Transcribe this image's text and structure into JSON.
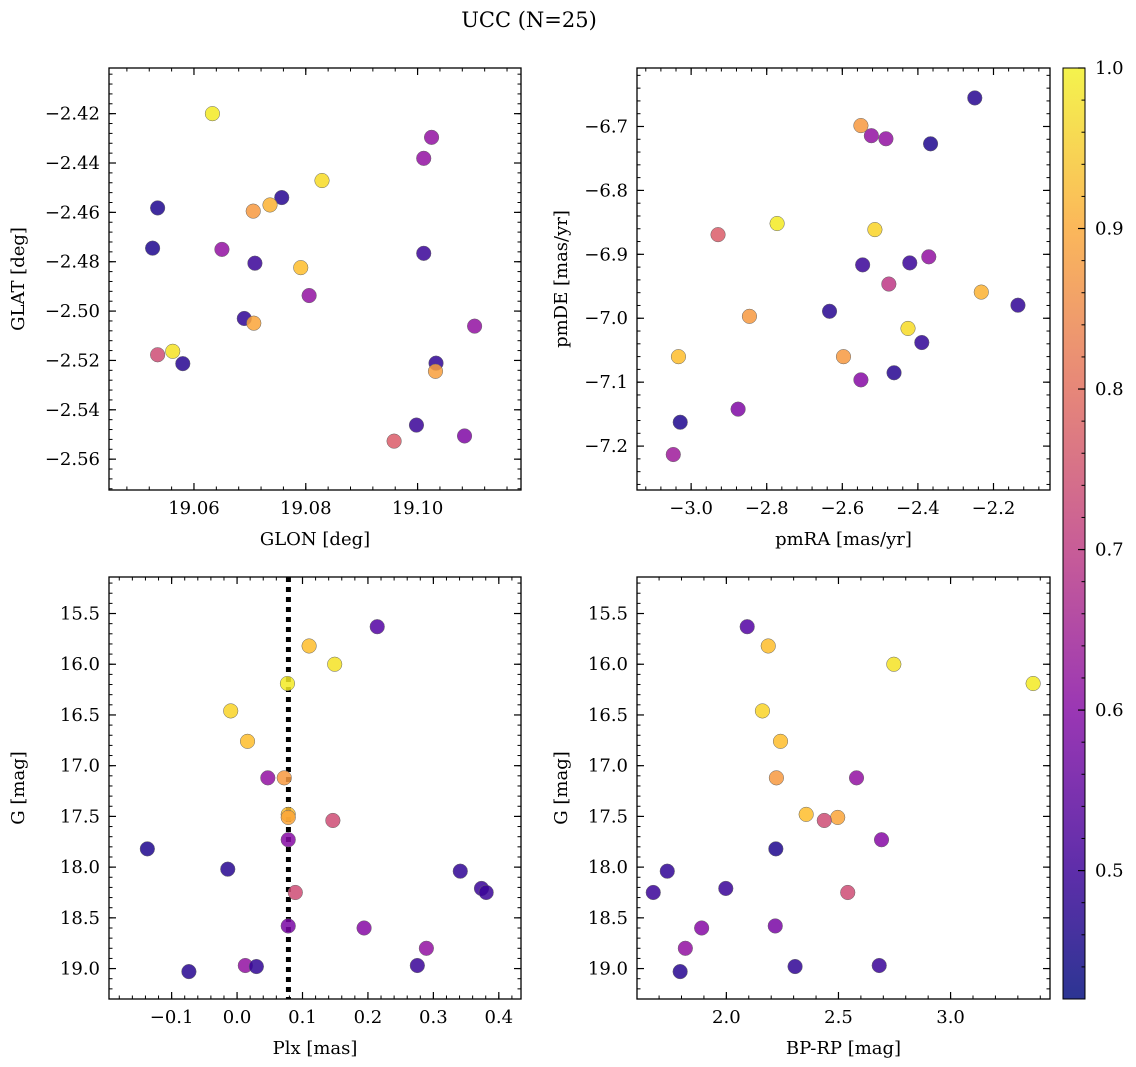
{
  "title": "UCC (N=25)",
  "colorbar": {
    "range": [
      0.42,
      1.0
    ],
    "ticks": [
      0.5,
      0.6,
      0.7,
      0.8,
      0.9,
      1.0
    ],
    "tick_labels": [
      "0.5",
      "0.6",
      "0.7",
      "0.8",
      "0.9",
      "1.0"
    ],
    "colormap": "plasma"
  },
  "chart_data": [
    {
      "type": "scatter",
      "name": "galactic-coordinates",
      "xlabel": "GLON [deg]",
      "ylabel": "GLAT [deg]",
      "xlim": [
        19.0448,
        19.1185
      ],
      "ylim": [
        -2.5725,
        -2.4015
      ],
      "y_inverted": false,
      "xticks": [
        19.06,
        19.08,
        19.1
      ],
      "xtick_labels": [
        "19.06",
        "19.08",
        "19.10"
      ],
      "yticks": [
        -2.42,
        -2.44,
        -2.46,
        -2.48,
        -2.5,
        -2.52,
        -2.54,
        -2.56
      ],
      "ytick_labels": [
        "−2.42",
        "−2.44",
        "−2.46",
        "−2.48",
        "−2.50",
        "−2.52",
        "−2.54",
        "−2.56"
      ],
      "points": [
        {
          "x": 19.0633,
          "y": -2.42,
          "c": 0.98
        },
        {
          "x": 19.1025,
          "y": -2.4296,
          "c": 0.6
        },
        {
          "x": 19.1011,
          "y": -2.4381,
          "c": 0.6
        },
        {
          "x": 19.0829,
          "y": -2.4471,
          "c": 0.96
        },
        {
          "x": 19.0757,
          "y": -2.454,
          "c": 0.45
        },
        {
          "x": 19.0535,
          "y": -2.4582,
          "c": 0.44
        },
        {
          "x": 19.0736,
          "y": -2.457,
          "c": 0.9
        },
        {
          "x": 19.0706,
          "y": -2.4595,
          "c": 0.86
        },
        {
          "x": 19.0526,
          "y": -2.4745,
          "c": 0.44
        },
        {
          "x": 19.065,
          "y": -2.475,
          "c": 0.6
        },
        {
          "x": 19.1011,
          "y": -2.4766,
          "c": 0.47
        },
        {
          "x": 19.0709,
          "y": -2.4806,
          "c": 0.47
        },
        {
          "x": 19.0791,
          "y": -2.4824,
          "c": 0.92
        },
        {
          "x": 19.0806,
          "y": -2.4937,
          "c": 0.6
        },
        {
          "x": 19.069,
          "y": -2.503,
          "c": 0.46
        },
        {
          "x": 19.0707,
          "y": -2.5049,
          "c": 0.88
        },
        {
          "x": 19.1102,
          "y": -2.5061,
          "c": 0.6
        },
        {
          "x": 19.0562,
          "y": -2.5163,
          "c": 0.97
        },
        {
          "x": 19.0535,
          "y": -2.5177,
          "c": 0.72
        },
        {
          "x": 19.058,
          "y": -2.5213,
          "c": 0.45
        },
        {
          "x": 19.1033,
          "y": -2.5211,
          "c": 0.46
        },
        {
          "x": 19.1032,
          "y": -2.5244,
          "c": 0.87
        },
        {
          "x": 19.0998,
          "y": -2.5462,
          "c": 0.47
        },
        {
          "x": 19.1084,
          "y": -2.5506,
          "c": 0.57
        },
        {
          "x": 19.0958,
          "y": -2.5527,
          "c": 0.75
        }
      ]
    },
    {
      "type": "scatter",
      "name": "proper-motions",
      "xlabel": "pmRA [mas/yr]",
      "ylabel": "pmDE [mas/yr]",
      "xlim": [
        -3.1432,
        -2.0505
      ],
      "ylim": [
        -7.2687,
        -6.6085
      ],
      "y_inverted": false,
      "xticks": [
        -3.0,
        -2.8,
        -2.6,
        -2.4,
        -2.2
      ],
      "xtick_labels": [
        "−3.0",
        "−2.8",
        "−2.6",
        "−2.4",
        "−2.2"
      ],
      "yticks": [
        -6.7,
        -6.8,
        -6.9,
        -7.0,
        -7.1,
        -7.2
      ],
      "ytick_labels": [
        "−6.7",
        "−6.8",
        "−6.9",
        "−7.0",
        "−7.1",
        "−7.2"
      ],
      "points": [
        {
          "x": -2.2495,
          "y": -6.6553,
          "c": 0.45
        },
        {
          "x": -2.5508,
          "y": -6.6986,
          "c": 0.86
        },
        {
          "x": -2.5231,
          "y": -6.7144,
          "c": 0.6
        },
        {
          "x": -2.4846,
          "y": -6.7192,
          "c": 0.6
        },
        {
          "x": -2.3665,
          "y": -6.7271,
          "c": 0.44
        },
        {
          "x": -2.7725,
          "y": -6.8518,
          "c": 0.98
        },
        {
          "x": -2.5138,
          "y": -6.8613,
          "c": 0.95
        },
        {
          "x": -2.9288,
          "y": -6.8692,
          "c": 0.75
        },
        {
          "x": -2.3712,
          "y": -6.9039,
          "c": 0.6
        },
        {
          "x": -2.4215,
          "y": -6.9134,
          "c": 0.47
        },
        {
          "x": -2.5462,
          "y": -6.9165,
          "c": 0.47
        },
        {
          "x": -2.4769,
          "y": -6.9465,
          "c": 0.68
        },
        {
          "x": -2.2323,
          "y": -6.9591,
          "c": 0.9
        },
        {
          "x": -2.1353,
          "y": -6.9796,
          "c": 0.46
        },
        {
          "x": -2.6338,
          "y": -6.9891,
          "c": 0.45
        },
        {
          "x": -2.8457,
          "y": -6.997,
          "c": 0.86
        },
        {
          "x": -2.4262,
          "y": -7.0159,
          "c": 0.96
        },
        {
          "x": -2.3897,
          "y": -7.038,
          "c": 0.46
        },
        {
          "x": -3.0335,
          "y": -7.0601,
          "c": 0.92
        },
        {
          "x": -2.5969,
          "y": -7.0601,
          "c": 0.86
        },
        {
          "x": -2.4631,
          "y": -7.0853,
          "c": 0.45
        },
        {
          "x": -2.5508,
          "y": -7.0964,
          "c": 0.58
        },
        {
          "x": -2.8757,
          "y": -7.1422,
          "c": 0.57
        },
        {
          "x": -3.0288,
          "y": -7.1627,
          "c": 0.44
        },
        {
          "x": -3.0472,
          "y": -7.2132,
          "c": 0.62
        }
      ]
    },
    {
      "type": "scatter",
      "name": "parallax-vs-magnitude",
      "xlabel": "Plx [mas]",
      "ylabel": "G [mag]",
      "xlim": [
        -0.1957,
        0.4339
      ],
      "ylim": [
        19.3,
        15.14
      ],
      "y_inverted": true,
      "xticks": [
        -0.1,
        0.0,
        0.1,
        0.2,
        0.3,
        0.4
      ],
      "xtick_labels": [
        "−0.1",
        "0.0",
        "0.1",
        "0.2",
        "0.3",
        "0.4"
      ],
      "yticks": [
        15.5,
        16.0,
        16.5,
        17.0,
        17.5,
        18.0,
        18.5,
        19.0
      ],
      "ytick_labels": [
        "15.5",
        "16.0",
        "16.5",
        "17.0",
        "17.5",
        "18.0",
        "18.5",
        "19.0"
      ],
      "vline": {
        "x": 0.0785,
        "style": "dotted"
      },
      "points": [
        {
          "x": 0.2142,
          "y": 15.63,
          "c": 0.5
        },
        {
          "x": 0.1101,
          "y": 15.82,
          "c": 0.92
        },
        {
          "x": 0.1492,
          "y": 16.0,
          "c": 0.97
        },
        {
          "x": 0.077,
          "y": 16.19,
          "c": 0.98
        },
        {
          "x": -0.0097,
          "y": 16.46,
          "c": 0.95
        },
        {
          "x": 0.016,
          "y": 16.76,
          "c": 0.92
        },
        {
          "x": 0.047,
          "y": 17.12,
          "c": 0.6
        },
        {
          "x": 0.0721,
          "y": 17.12,
          "c": 0.86
        },
        {
          "x": 0.0782,
          "y": 17.48,
          "c": 0.92
        },
        {
          "x": 0.0782,
          "y": 17.51,
          "c": 0.88
        },
        {
          "x": 0.1464,
          "y": 17.54,
          "c": 0.72
        },
        {
          "x": 0.0782,
          "y": 17.73,
          "c": 0.58
        },
        {
          "x": -0.1371,
          "y": 17.82,
          "c": 0.44
        },
        {
          "x": -0.0142,
          "y": 18.02,
          "c": 0.45
        },
        {
          "x": 0.3411,
          "y": 18.04,
          "c": 0.46
        },
        {
          "x": 0.3735,
          "y": 18.21,
          "c": 0.47
        },
        {
          "x": 0.3807,
          "y": 18.25,
          "c": 0.47
        },
        {
          "x": 0.089,
          "y": 18.25,
          "c": 0.72
        },
        {
          "x": 0.0782,
          "y": 18.58,
          "c": 0.56
        },
        {
          "x": 0.1941,
          "y": 18.6,
          "c": 0.58
        },
        {
          "x": 0.2893,
          "y": 18.8,
          "c": 0.6
        },
        {
          "x": 0.0126,
          "y": 18.97,
          "c": 0.6
        },
        {
          "x": 0.0295,
          "y": 18.98,
          "c": 0.46
        },
        {
          "x": 0.2755,
          "y": 18.97,
          "c": 0.47
        },
        {
          "x": -0.0736,
          "y": 19.03,
          "c": 0.45
        }
      ]
    },
    {
      "type": "scatter",
      "name": "color-magnitude",
      "xlabel": "BP-RP [mag]",
      "ylabel": "G [mag]",
      "xlim": [
        1.6015,
        3.4434
      ],
      "ylim": [
        19.3,
        15.14
      ],
      "y_inverted": true,
      "xticks": [
        2.0,
        2.5,
        3.0
      ],
      "xtick_labels": [
        "2.0",
        "2.5",
        "3.0"
      ],
      "yticks": [
        15.5,
        16.0,
        16.5,
        17.0,
        17.5,
        18.0,
        18.5,
        19.0
      ],
      "ytick_labels": [
        "15.5",
        "16.0",
        "16.5",
        "17.0",
        "17.5",
        "18.0",
        "18.5",
        "19.0"
      ],
      "points": [
        {
          "x": 2.093,
          "y": 15.63,
          "c": 0.5
        },
        {
          "x": 2.1868,
          "y": 15.82,
          "c": 0.92
        },
        {
          "x": 2.7469,
          "y": 16.0,
          "c": 0.97
        },
        {
          "x": 3.3682,
          "y": 16.19,
          "c": 0.98
        },
        {
          "x": 2.1608,
          "y": 16.46,
          "c": 0.95
        },
        {
          "x": 2.2415,
          "y": 16.76,
          "c": 0.92
        },
        {
          "x": 2.2232,
          "y": 17.12,
          "c": 0.86
        },
        {
          "x": 2.5805,
          "y": 17.12,
          "c": 0.6
        },
        {
          "x": 2.356,
          "y": 17.48,
          "c": 0.92
        },
        {
          "x": 2.4966,
          "y": 17.51,
          "c": 0.88
        },
        {
          "x": 2.4368,
          "y": 17.54,
          "c": 0.72
        },
        {
          "x": 2.692,
          "y": 17.73,
          "c": 0.58
        },
        {
          "x": 2.2207,
          "y": 17.82,
          "c": 0.44
        },
        {
          "x": 1.7365,
          "y": 18.04,
          "c": 0.46
        },
        {
          "x": 1.9975,
          "y": 18.21,
          "c": 0.47
        },
        {
          "x": 1.674,
          "y": 18.25,
          "c": 0.47
        },
        {
          "x": 2.5414,
          "y": 18.25,
          "c": 0.72
        },
        {
          "x": 2.2181,
          "y": 18.58,
          "c": 0.56
        },
        {
          "x": 1.8898,
          "y": 18.6,
          "c": 0.58
        },
        {
          "x": 1.8171,
          "y": 18.8,
          "c": 0.6
        },
        {
          "x": 2.3065,
          "y": 18.98,
          "c": 0.46
        },
        {
          "x": 2.6818,
          "y": 18.97,
          "c": 0.47
        },
        {
          "x": 1.794,
          "y": 19.03,
          "c": 0.45
        }
      ]
    }
  ]
}
